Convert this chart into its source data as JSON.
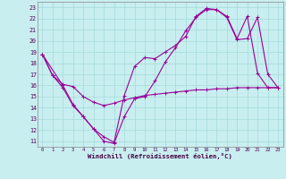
{
  "xlabel": "Windchill (Refroidissement éolien,°C)",
  "bg_color": "#c8eef0",
  "line_color": "#990099",
  "grid_color": "#aadddd",
  "line1_x": [
    0,
    1,
    2,
    3,
    4,
    5,
    6,
    7,
    8,
    9,
    10,
    11,
    12,
    13,
    14,
    15,
    16,
    17,
    18,
    19,
    20,
    21,
    22,
    23
  ],
  "line1_y": [
    18.8,
    16.9,
    15.8,
    14.2,
    13.2,
    12.1,
    11.0,
    10.8,
    13.2,
    14.8,
    15.0,
    16.4,
    18.1,
    19.4,
    20.9,
    22.1,
    22.8,
    22.8,
    22.1,
    20.1,
    20.2,
    22.1,
    17.0,
    15.8
  ],
  "line2_x": [
    0,
    1,
    2,
    3,
    4,
    5,
    6,
    7,
    8,
    9,
    10,
    11,
    12,
    13,
    14,
    15,
    16,
    17,
    18,
    19,
    20,
    21,
    22,
    23
  ],
  "line2_y": [
    18.8,
    16.9,
    16.1,
    15.9,
    15.0,
    14.5,
    14.2,
    14.4,
    14.7,
    14.9,
    15.1,
    15.2,
    15.3,
    15.4,
    15.5,
    15.6,
    15.6,
    15.7,
    15.7,
    15.8,
    15.8,
    15.8,
    15.8,
    15.8
  ],
  "line3_x": [
    0,
    2,
    3,
    4,
    5,
    6,
    7,
    8,
    9,
    10,
    11,
    12,
    13,
    14,
    15,
    16,
    17,
    18,
    19,
    20,
    21,
    22,
    23
  ],
  "line3_y": [
    18.8,
    16.0,
    14.3,
    13.2,
    12.1,
    11.4,
    10.9,
    15.1,
    17.7,
    18.5,
    18.4,
    19.0,
    19.6,
    20.4,
    22.2,
    22.9,
    22.8,
    22.2,
    20.2,
    22.2,
    17.1,
    15.8,
    15.8
  ],
  "xlim": [
    -0.5,
    23.5
  ],
  "ylim": [
    10.5,
    23.5
  ],
  "yticks": [
    11,
    12,
    13,
    14,
    15,
    16,
    17,
    18,
    19,
    20,
    21,
    22,
    23
  ],
  "xticks": [
    0,
    1,
    2,
    3,
    4,
    5,
    6,
    7,
    8,
    9,
    10,
    11,
    12,
    13,
    14,
    15,
    16,
    17,
    18,
    19,
    20,
    21,
    22,
    23
  ]
}
